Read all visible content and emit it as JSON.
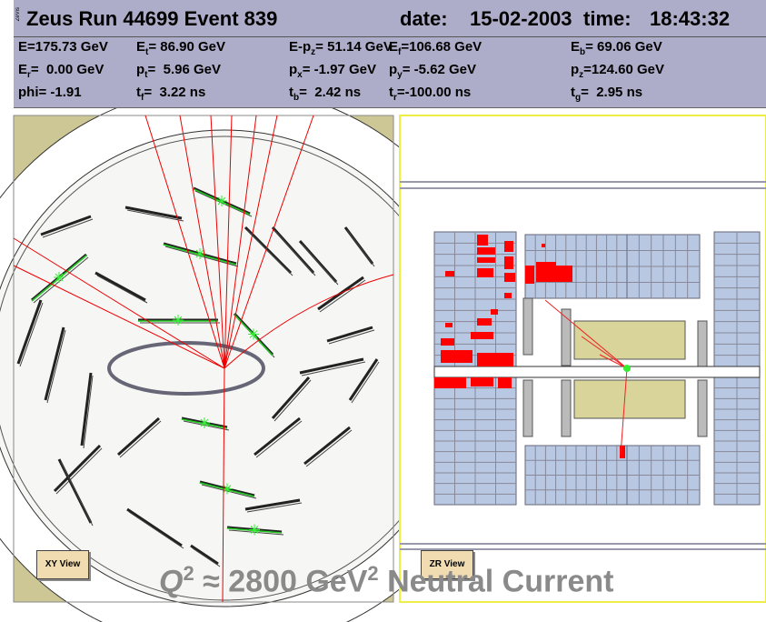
{
  "header": {
    "logo": "ZeVis",
    "title": "Zeus Run 44699 Event 839",
    "date_label": "date:",
    "date": "15-02-2003",
    "time_label": "time:",
    "time": "18:43:32"
  },
  "info": {
    "rows": [
      [
        [
          {
            "text": "E=175.73 GeV"
          }
        ],
        [
          {
            "text": "E"
          },
          {
            "sub": "t"
          },
          {
            "text": "= 86.90 GeV"
          }
        ],
        [
          {
            "text": "E-p"
          },
          {
            "sub": "z"
          },
          {
            "text": "= 51.14 GeV"
          }
        ],
        [
          {
            "text": "E"
          },
          {
            "sub": "f"
          },
          {
            "text": "=106.68 GeV"
          }
        ],
        [
          {
            "text": "E"
          },
          {
            "sub": "b"
          },
          {
            "text": "= 69.06 GeV"
          }
        ]
      ],
      [
        [
          {
            "text": "E"
          },
          {
            "sub": "r"
          },
          {
            "text": "=  0.00 GeV"
          }
        ],
        [
          {
            "text": "p"
          },
          {
            "sub": "t"
          },
          {
            "text": "=  5.96 GeV"
          }
        ],
        [
          {
            "text": "p"
          },
          {
            "sub": "x"
          },
          {
            "text": "= -1.97 GeV"
          }
        ],
        [
          {
            "text": "p"
          },
          {
            "sub": "y"
          },
          {
            "text": "= -5.62 GeV"
          }
        ],
        [
          {
            "text": "p"
          },
          {
            "sub": "z"
          },
          {
            "text": "=124.60 GeV"
          }
        ]
      ],
      [
        [
          {
            "text": "phi= -1.91"
          }
        ],
        [
          {
            "text": "t"
          },
          {
            "sub": "f"
          },
          {
            "text": "=  3.22 ns"
          }
        ],
        [
          {
            "text": "t"
          },
          {
            "sub": "b"
          },
          {
            "text": "=  2.42 ns"
          }
        ],
        [
          {
            "text": "t"
          },
          {
            "sub": "r"
          },
          {
            "text": "=-100.00 ns"
          }
        ],
        [
          {
            "text": "t"
          },
          {
            "sub": "g"
          },
          {
            "text": "=  2.95 ns"
          }
        ]
      ]
    ]
  },
  "views": {
    "xy_label": "XY View",
    "zr_label": "ZR View"
  },
  "caption": [
    {
      "italic": "Q"
    },
    {
      "sup": "2"
    },
    {
      "text": " ≈ 2800 GeV"
    },
    {
      "sup": "2"
    },
    {
      "text": " Neutral Current"
    }
  ]
}
